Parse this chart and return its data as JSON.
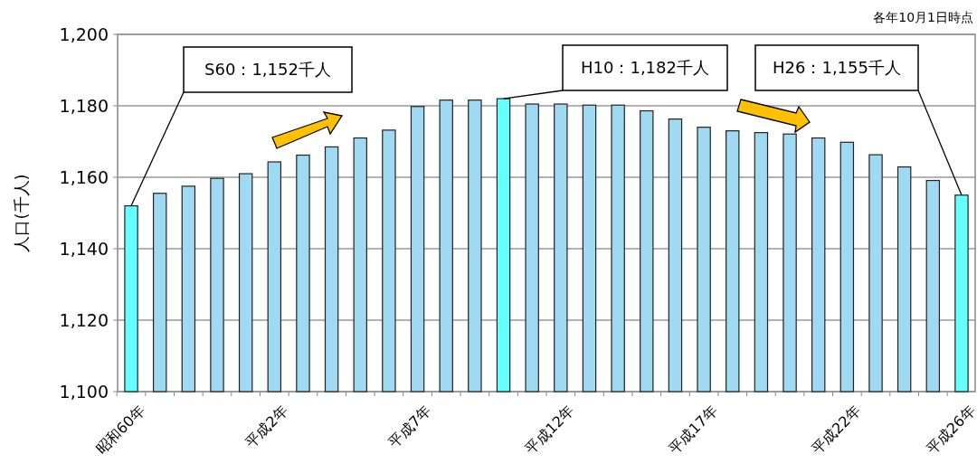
{
  "chart_data": {
    "type": "bar",
    "ylabel": "人口(千人)",
    "categories": [
      "昭和60年",
      null,
      null,
      null,
      null,
      "平成2年",
      null,
      null,
      null,
      null,
      "平成7年",
      null,
      null,
      null,
      null,
      "平成12年",
      null,
      null,
      null,
      null,
      "平成17年",
      null,
      null,
      null,
      null,
      "平成22年",
      null,
      null,
      null,
      "平成26年"
    ],
    "values": [
      1152,
      1155.5,
      1157.5,
      1159.7,
      1161,
      1164.3,
      1166.2,
      1168.5,
      1171,
      1173.2,
      1179.8,
      1181.6,
      1181.6,
      1182,
      1180.5,
      1180.5,
      1180.2,
      1180.2,
      1178.6,
      1176.3,
      1174,
      1173,
      1172.5,
      1172.1,
      1171,
      1169.8,
      1166.3,
      1162.9,
      1159.1,
      1155
    ],
    "colors": [
      "#66ffff",
      "#9fd9f2",
      "#9fd9f2",
      "#9fd9f2",
      "#9fd9f2",
      "#9fd9f2",
      "#9fd9f2",
      "#9fd9f2",
      "#9fd9f2",
      "#9fd9f2",
      "#9fd9f2",
      "#9fd9f2",
      "#9fd9f2",
      "#66ffff",
      "#9fd9f2",
      "#9fd9f2",
      "#9fd9f2",
      "#9fd9f2",
      "#9fd9f2",
      "#9fd9f2",
      "#9fd9f2",
      "#9fd9f2",
      "#9fd9f2",
      "#9fd9f2",
      "#9fd9f2",
      "#9fd9f2",
      "#9fd9f2",
      "#9fd9f2",
      "#9fd9f2",
      "#66ffff"
    ],
    "ylim": [
      1100,
      1200
    ],
    "yticks": [
      {
        "value": 1100,
        "label": "1,100"
      },
      {
        "value": 1120,
        "label": "1,120"
      },
      {
        "value": 1140,
        "label": "1,140"
      },
      {
        "value": 1160,
        "label": "1,160"
      },
      {
        "value": 1180,
        "label": "1,180"
      },
      {
        "value": 1200,
        "label": "1,200"
      }
    ],
    "grid": "y",
    "annotations": [
      "S60：1,152千人",
      "H10：1,182千人",
      "H26：1,155千人",
      "各年10月1日時点"
    ]
  }
}
